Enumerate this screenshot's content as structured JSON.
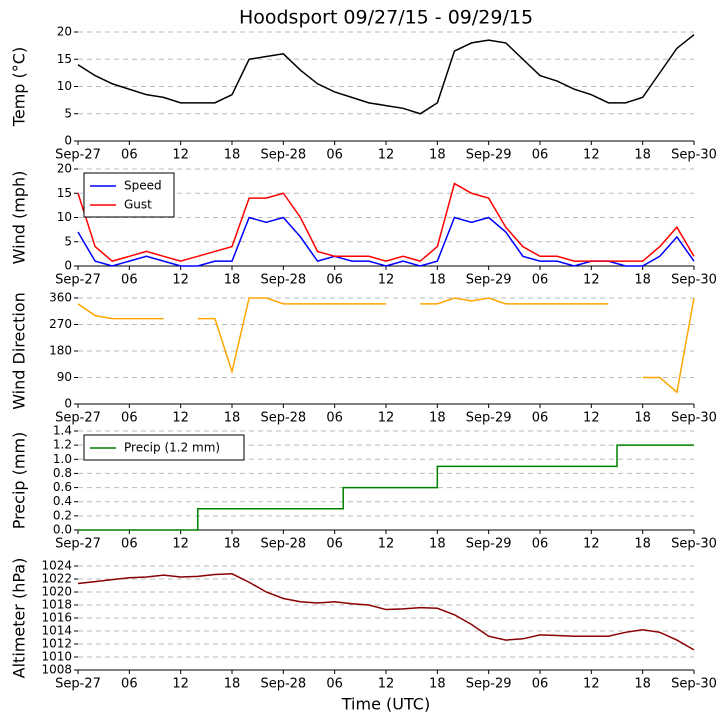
{
  "chart_data": [
    {
      "type": "line",
      "title": "Hoodsport 09/27/15 - 09/29/15",
      "y_label": "Temp (°C)",
      "x": [
        0,
        2,
        4,
        6,
        8,
        10,
        12,
        14,
        16,
        18,
        20,
        22,
        24,
        26,
        28,
        30,
        32,
        34,
        36,
        38,
        40,
        42,
        44,
        46,
        48,
        50,
        52,
        54,
        56,
        58,
        60,
        62,
        64,
        66,
        68,
        70,
        72
      ],
      "values": [
        14,
        12,
        10.5,
        9.5,
        8.5,
        8,
        7,
        7,
        7,
        8.5,
        15,
        15.5,
        16,
        13,
        10.5,
        9,
        8,
        7,
        6.5,
        6,
        5,
        7,
        16.5,
        18,
        18.5,
        18,
        15,
        12,
        11,
        9.5,
        8.5,
        7,
        7,
        8,
        12.5,
        17,
        19.5
      ],
      "color": "#000000",
      "xlim": [
        0,
        72
      ],
      "xticks": [
        {
          "value": 0,
          "label": "Sep-27"
        },
        {
          "value": 6,
          "label": "06"
        },
        {
          "value": 12,
          "label": "12"
        },
        {
          "value": 18,
          "label": "18"
        },
        {
          "value": 24,
          "label": "Sep-28"
        },
        {
          "value": 30,
          "label": "06"
        },
        {
          "value": 36,
          "label": "12"
        },
        {
          "value": 42,
          "label": "18"
        },
        {
          "value": 48,
          "label": "Sep-29"
        },
        {
          "value": 54,
          "label": "06"
        },
        {
          "value": 60,
          "label": "12"
        },
        {
          "value": 66,
          "label": "18"
        },
        {
          "value": 72,
          "label": "Sep-30"
        }
      ],
      "ylim": [
        0,
        20
      ],
      "yticks": [
        0,
        5,
        10,
        15,
        20
      ],
      "grid": true
    },
    {
      "type": "line",
      "y_label": "Wind (mph)",
      "x": [
        0,
        2,
        4,
        6,
        8,
        10,
        12,
        14,
        16,
        18,
        20,
        22,
        24,
        26,
        28,
        30,
        32,
        34,
        36,
        38,
        40,
        42,
        44,
        46,
        48,
        50,
        52,
        54,
        56,
        58,
        60,
        62,
        64,
        66,
        68,
        70,
        72
      ],
      "series": [
        {
          "name": "Speed",
          "color": "#0000ff",
          "values": [
            7,
            1,
            0,
            1,
            2,
            1,
            0,
            0,
            1,
            1,
            10,
            9,
            10,
            6,
            1,
            2,
            1,
            1,
            0,
            1,
            0,
            1,
            10,
            9,
            10,
            7,
            2,
            1,
            1,
            0,
            1,
            1,
            0,
            0,
            2,
            6,
            1
          ]
        },
        {
          "name": "Gust",
          "color": "#ff0000",
          "values": [
            15,
            4,
            1,
            2,
            3,
            2,
            1,
            2,
            3,
            4,
            14,
            14,
            15,
            10,
            3,
            2,
            2,
            2,
            1,
            2,
            1,
            4,
            17,
            15,
            14,
            8,
            4,
            2,
            2,
            1,
            1,
            1,
            1,
            1,
            4,
            8,
            2
          ]
        }
      ],
      "xlim": [
        0,
        72
      ],
      "xticks": [
        {
          "value": 0,
          "label": "Sep-27"
        },
        {
          "value": 6,
          "label": "06"
        },
        {
          "value": 12,
          "label": "12"
        },
        {
          "value": 18,
          "label": "18"
        },
        {
          "value": 24,
          "label": "Sep-28"
        },
        {
          "value": 30,
          "label": "06"
        },
        {
          "value": 36,
          "label": "12"
        },
        {
          "value": 42,
          "label": "18"
        },
        {
          "value": 48,
          "label": "Sep-29"
        },
        {
          "value": 54,
          "label": "06"
        },
        {
          "value": 60,
          "label": "12"
        },
        {
          "value": 66,
          "label": "18"
        },
        {
          "value": 72,
          "label": "Sep-30"
        }
      ],
      "ylim": [
        0,
        20
      ],
      "yticks": [
        0,
        5,
        10,
        15,
        20
      ],
      "grid": true,
      "legend": "upper left"
    },
    {
      "type": "line",
      "y_label": "Wind Direction",
      "x": [
        0,
        2,
        4,
        6,
        8,
        10,
        12,
        14,
        16,
        18,
        20,
        22,
        24,
        26,
        28,
        30,
        32,
        34,
        36,
        38,
        40,
        42,
        44,
        46,
        48,
        50,
        52,
        54,
        56,
        58,
        60,
        62,
        64,
        66,
        68,
        70,
        72
      ],
      "values": [
        340,
        300,
        290,
        290,
        290,
        290,
        null,
        290,
        290,
        110,
        360,
        360,
        340,
        340,
        340,
        340,
        340,
        340,
        340,
        null,
        340,
        340,
        360,
        350,
        360,
        340,
        340,
        340,
        340,
        340,
        340,
        340,
        null,
        90,
        90,
        40,
        360
      ],
      "color": "#ffa500",
      "xlim": [
        0,
        72
      ],
      "xticks": [
        {
          "value": 0,
          "label": "Sep-27"
        },
        {
          "value": 6,
          "label": "06"
        },
        {
          "value": 12,
          "label": "12"
        },
        {
          "value": 18,
          "label": "18"
        },
        {
          "value": 24,
          "label": "Sep-28"
        },
        {
          "value": 30,
          "label": "06"
        },
        {
          "value": 36,
          "label": "12"
        },
        {
          "value": 42,
          "label": "18"
        },
        {
          "value": 48,
          "label": "Sep-29"
        },
        {
          "value": 54,
          "label": "06"
        },
        {
          "value": 60,
          "label": "12"
        },
        {
          "value": 66,
          "label": "18"
        },
        {
          "value": 72,
          "label": "Sep-30"
        }
      ],
      "ylim": [
        0,
        360
      ],
      "yticks": [
        0,
        90,
        180,
        270,
        360
      ],
      "grid": true
    },
    {
      "type": "line",
      "y_label": "Precip (mm)",
      "drawstyle": "steps-post",
      "x": [
        0,
        14,
        31,
        42,
        63,
        72
      ],
      "series": [
        {
          "name": "Precip (1.2 mm)",
          "color": "#008000",
          "values": [
            0,
            0.3,
            0.6,
            0.9,
            1.2,
            1.2
          ]
        }
      ],
      "xlim": [
        0,
        72
      ],
      "xticks": [
        {
          "value": 0,
          "label": "Sep-27"
        },
        {
          "value": 6,
          "label": "06"
        },
        {
          "value": 12,
          "label": "12"
        },
        {
          "value": 18,
          "label": "18"
        },
        {
          "value": 24,
          "label": "Sep-28"
        },
        {
          "value": 30,
          "label": "06"
        },
        {
          "value": 36,
          "label": "12"
        },
        {
          "value": 42,
          "label": "18"
        },
        {
          "value": 48,
          "label": "Sep-29"
        },
        {
          "value": 54,
          "label": "06"
        },
        {
          "value": 60,
          "label": "12"
        },
        {
          "value": 66,
          "label": "18"
        },
        {
          "value": 72,
          "label": "Sep-30"
        }
      ],
      "ylim": [
        0,
        1.4
      ],
      "yticks": [
        {
          "value": 0,
          "label": "0.0"
        },
        0.2,
        0.4,
        0.6,
        0.8,
        {
          "value": 1,
          "label": "1.0"
        },
        1.2,
        1.4
      ],
      "grid": true,
      "legend": "upper left"
    },
    {
      "type": "line",
      "y_label": "Altimeter (hPa)",
      "x_label": "Time (UTC)",
      "x": [
        0,
        2,
        4,
        6,
        8,
        10,
        12,
        14,
        16,
        18,
        20,
        22,
        24,
        26,
        28,
        30,
        32,
        34,
        36,
        38,
        40,
        42,
        44,
        46,
        48,
        50,
        52,
        54,
        56,
        58,
        60,
        62,
        64,
        66,
        68,
        70,
        72
      ],
      "values": [
        1021.3,
        1021.6,
        1021.9,
        1022.2,
        1022.3,
        1022.6,
        1022.3,
        1022.4,
        1022.7,
        1022.8,
        1021.5,
        1020,
        1019,
        1018.5,
        1018.3,
        1018.5,
        1018.2,
        1018,
        1017.3,
        1017.4,
        1017.6,
        1017.5,
        1016.5,
        1015,
        1013.2,
        1012.6,
        1012.8,
        1013.4,
        1013.3,
        1013.2,
        1013.2,
        1013.2,
        1013.8,
        1014.2,
        1013.8,
        1012.6,
        1011.1
      ],
      "color": "#8b0000",
      "xlim": [
        0,
        72
      ],
      "xticks": [
        {
          "value": 0,
          "label": "Sep-27"
        },
        {
          "value": 6,
          "label": "06"
        },
        {
          "value": 12,
          "label": "12"
        },
        {
          "value": 18,
          "label": "18"
        },
        {
          "value": 24,
          "label": "Sep-28"
        },
        {
          "value": 30,
          "label": "06"
        },
        {
          "value": 36,
          "label": "12"
        },
        {
          "value": 42,
          "label": "18"
        },
        {
          "value": 48,
          "label": "Sep-29"
        },
        {
          "value": 54,
          "label": "06"
        },
        {
          "value": 60,
          "label": "12"
        },
        {
          "value": 66,
          "label": "18"
        },
        {
          "value": 72,
          "label": "Sep-30"
        }
      ],
      "ylim": [
        1008,
        1024
      ],
      "yticks": [
        1008,
        1010,
        1012,
        1014,
        1016,
        1018,
        1020,
        1022,
        1024
      ],
      "grid": true
    }
  ]
}
